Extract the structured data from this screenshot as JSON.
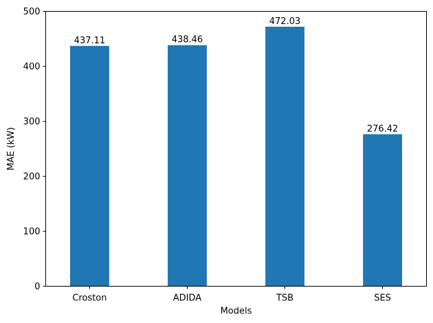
{
  "chart_data": {
    "type": "bar",
    "title": "",
    "xlabel": "Models",
    "ylabel": "MAE (kW)",
    "categories": [
      "Croston",
      "ADIDA",
      "TSB",
      "SES"
    ],
    "values": [
      437.11,
      438.46,
      472.03,
      276.42
    ],
    "value_labels": [
      "437.11",
      "438.46",
      "472.03",
      "276.42"
    ],
    "ylim": [
      0,
      500
    ],
    "yticks": [
      0,
      100,
      200,
      300,
      400,
      500
    ],
    "ytick_labels": [
      "0",
      "100",
      "200",
      "300",
      "400",
      "500"
    ],
    "grid": false,
    "legend": "none",
    "bar_color": "#1f77b4"
  }
}
